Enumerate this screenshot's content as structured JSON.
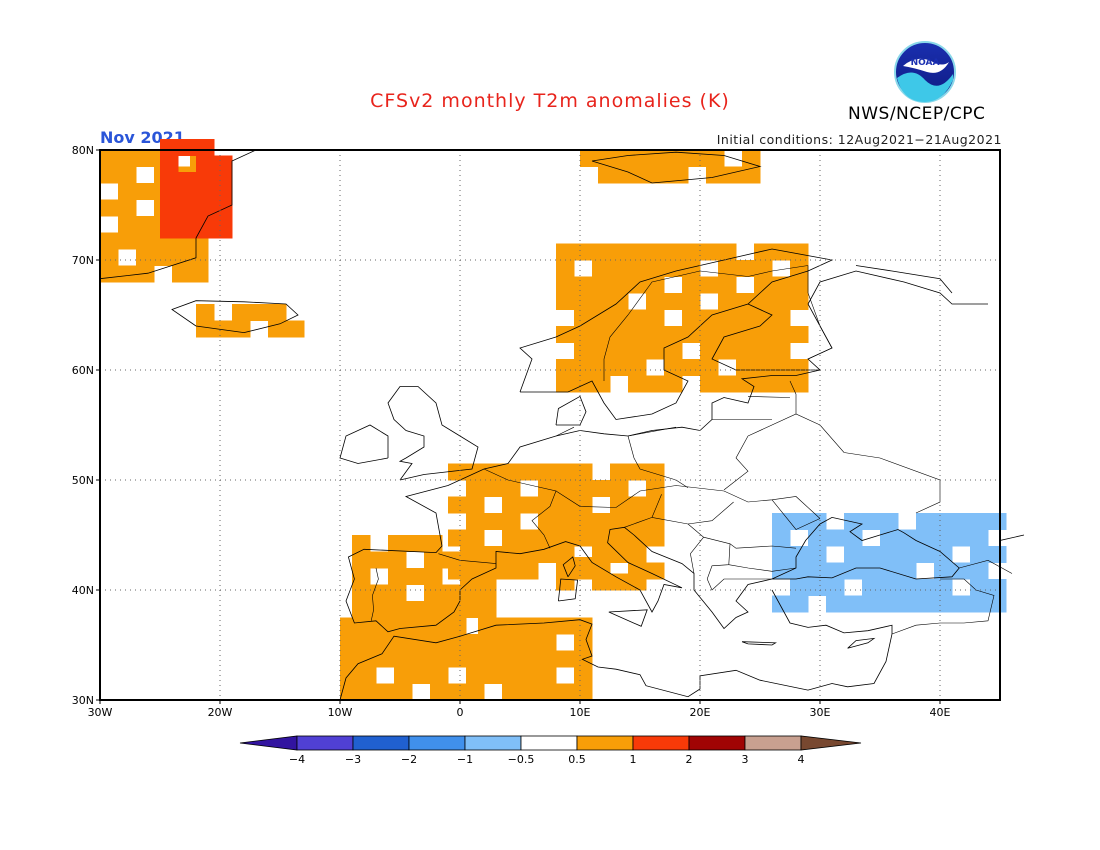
{
  "title": "CFSv2 monthly T2m anomalies (K)",
  "organization": "NWS/NCEP/CPC",
  "logo_text": "NOAA",
  "period": "Nov 2021",
  "initial_conditions": "Initial conditions: 12Aug2021−21Aug2021",
  "map": {
    "lon_range": [
      -30,
      45
    ],
    "lat_range": [
      30,
      80
    ],
    "lat_labels": [
      "30N",
      "40N",
      "50N",
      "60N",
      "70N",
      "80N"
    ],
    "lat_values": [
      30,
      40,
      50,
      60,
      70,
      80
    ],
    "lon_labels": [
      "30W",
      "20W",
      "10W",
      "0",
      "10E",
      "20E",
      "30E",
      "40E"
    ],
    "lon_values": [
      -30,
      -20,
      -10,
      0,
      10,
      20,
      30,
      40
    ],
    "grid": "dotted",
    "anomaly_regions": [
      {
        "name": "Greenland",
        "class": "0.5-1",
        "lat": [
          68,
          80
        ],
        "lon": [
          -30,
          -22
        ]
      },
      {
        "name": "Greenland east coast",
        "class": "1-2",
        "lat": [
          72,
          80
        ],
        "lon": [
          -25,
          -19
        ]
      },
      {
        "name": "Svalbard",
        "class": "0.5-1",
        "lat": [
          77,
          80
        ],
        "lon": [
          10,
          25
        ]
      },
      {
        "name": "Iceland",
        "class": "0.5-1",
        "lat": [
          63,
          66
        ],
        "lon": [
          -22,
          -14
        ]
      },
      {
        "name": "Scandinavia",
        "class": "0.5-1",
        "lat": [
          58,
          71
        ],
        "lon": [
          8,
          28
        ]
      },
      {
        "name": "Iberia",
        "class": "0.5-1",
        "lat": [
          36,
          44
        ],
        "lon": [
          -9,
          3
        ]
      },
      {
        "name": "France / Alps",
        "class": "0.5-1",
        "lat": [
          41,
          51
        ],
        "lon": [
          -1,
          17
        ]
      },
      {
        "name": "Italy",
        "class": "0.5-1",
        "lat": [
          40,
          46
        ],
        "lon": [
          8,
          15
        ]
      },
      {
        "name": "Northwest Africa",
        "class": "0.5-1",
        "lat": [
          30,
          37
        ],
        "lon": [
          -10,
          10
        ]
      },
      {
        "name": "Black Sea / Caucasus",
        "class": "-1--0.5",
        "lat": [
          38,
          46
        ],
        "lon": [
          26,
          45
        ]
      }
    ]
  },
  "colorbar": {
    "labels": [
      "−4",
      "−3",
      "−2",
      "−1",
      "−0.5",
      "0.5",
      "1",
      "2",
      "3",
      "4"
    ],
    "colors": [
      "#3214a0",
      "#5040d4",
      "#2060d0",
      "#4090ec",
      "#80bff8",
      "#ffffff",
      "#f89e08",
      "#f83a08",
      "#a00404",
      "#c8a090",
      "#784830"
    ]
  }
}
